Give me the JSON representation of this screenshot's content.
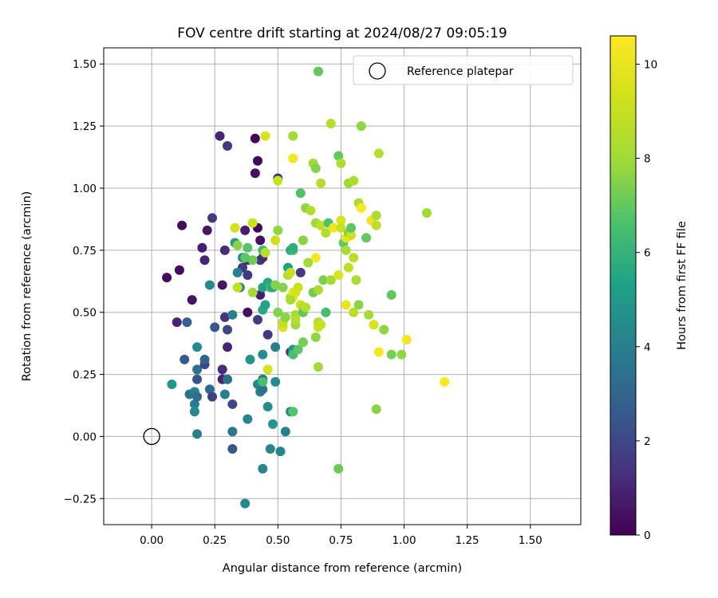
{
  "chart_data": {
    "type": "scatter",
    "title": "FOV centre drift starting at 2024/08/27 09:05:19",
    "xlabel": "Angular distance from reference (arcmin)",
    "ylabel": "Rotation from reference (arcmin)",
    "xlim": [
      -0.19,
      1.7
    ],
    "ylim": [
      -0.355,
      1.565
    ],
    "xticks": [
      "0.00",
      "0.25",
      "0.50",
      "0.75",
      "1.00",
      "1.25",
      "1.50"
    ],
    "yticks": [
      "−0.25",
      "0.00",
      "0.25",
      "0.50",
      "0.75",
      "1.00",
      "1.25",
      "1.50"
    ],
    "grid": true,
    "legend_position": "top-right",
    "reference": {
      "label": "Reference platepar",
      "x": 0.0,
      "y": 0.0
    },
    "colorbar": {
      "label": "Hours from first FF file",
      "colormap": "viridis",
      "range": [
        0,
        10.6
      ],
      "ticks": [
        "0",
        "2",
        "4",
        "6",
        "8",
        "10"
      ]
    },
    "points": [
      {
        "x": 0.06,
        "y": 0.64,
        "h": 0.3
      },
      {
        "x": 0.11,
        "y": 0.67,
        "h": 0.3
      },
      {
        "x": 0.12,
        "y": 0.85,
        "h": 0.3
      },
      {
        "x": 0.16,
        "y": 0.55,
        "h": 0.5
      },
      {
        "x": 0.1,
        "y": 0.46,
        "h": 1.0
      },
      {
        "x": 0.2,
        "y": 0.76,
        "h": 0.8
      },
      {
        "x": 0.21,
        "y": 0.71,
        "h": 1.0
      },
      {
        "x": 0.22,
        "y": 0.83,
        "h": 0.6
      },
      {
        "x": 0.24,
        "y": 0.88,
        "h": 1.6
      },
      {
        "x": 0.27,
        "y": 1.21,
        "h": 1.0
      },
      {
        "x": 0.3,
        "y": 1.17,
        "h": 1.5
      },
      {
        "x": 0.29,
        "y": 0.75,
        "h": 1.2
      },
      {
        "x": 0.37,
        "y": 0.83,
        "h": 0.8
      },
      {
        "x": 0.41,
        "y": 1.2,
        "h": 0.1
      },
      {
        "x": 0.42,
        "y": 1.11,
        "h": 0.2
      },
      {
        "x": 0.41,
        "y": 1.06,
        "h": 0.4
      },
      {
        "x": 0.42,
        "y": 0.84,
        "h": 0.2
      },
      {
        "x": 0.43,
        "y": 0.79,
        "h": 0.4
      },
      {
        "x": 0.38,
        "y": 0.71,
        "h": 1.3
      },
      {
        "x": 0.43,
        "y": 0.71,
        "h": 1.6
      },
      {
        "x": 0.44,
        "y": 0.72,
        "h": 1.2
      },
      {
        "x": 0.36,
        "y": 0.68,
        "h": 1.5
      },
      {
        "x": 0.38,
        "y": 0.65,
        "h": 1.5
      },
      {
        "x": 0.28,
        "y": 0.61,
        "h": 0.6
      },
      {
        "x": 0.23,
        "y": 0.61,
        "h": 4.4
      },
      {
        "x": 0.25,
        "y": 0.44,
        "h": 2.5
      },
      {
        "x": 0.29,
        "y": 0.48,
        "h": 1.4
      },
      {
        "x": 0.3,
        "y": 0.43,
        "h": 2.0
      },
      {
        "x": 0.3,
        "y": 0.36,
        "h": 1.0
      },
      {
        "x": 0.38,
        "y": 0.5,
        "h": 0.4
      },
      {
        "x": 0.42,
        "y": 0.47,
        "h": 1.7
      },
      {
        "x": 0.43,
        "y": 0.57,
        "h": 0.8
      },
      {
        "x": 0.46,
        "y": 0.41,
        "h": 1.5
      },
      {
        "x": 0.5,
        "y": 1.04,
        "h": 1.5
      },
      {
        "x": 0.59,
        "y": 0.66,
        "h": 1.5
      },
      {
        "x": 0.55,
        "y": 0.34,
        "h": 1.8
      },
      {
        "x": 0.14,
        "y": 0.46,
        "h": 2.8
      },
      {
        "x": 0.13,
        "y": 0.31,
        "h": 2.6
      },
      {
        "x": 0.18,
        "y": 0.27,
        "h": 3.5
      },
      {
        "x": 0.18,
        "y": 0.23,
        "h": 2.4
      },
      {
        "x": 0.21,
        "y": 0.29,
        "h": 2.0
      },
      {
        "x": 0.21,
        "y": 0.31,
        "h": 3.0
      },
      {
        "x": 0.23,
        "y": 0.19,
        "h": 3.1
      },
      {
        "x": 0.24,
        "y": 0.16,
        "h": 1.8
      },
      {
        "x": 0.28,
        "y": 0.27,
        "h": 1.2
      },
      {
        "x": 0.28,
        "y": 0.23,
        "h": 0.9
      },
      {
        "x": 0.3,
        "y": 0.23,
        "h": 3.3
      },
      {
        "x": 0.32,
        "y": 0.13,
        "h": 2.0
      },
      {
        "x": 0.29,
        "y": 0.17,
        "h": 4.0
      },
      {
        "x": 0.08,
        "y": 0.21,
        "h": 5.0
      },
      {
        "x": 0.15,
        "y": 0.17,
        "h": 3.5
      },
      {
        "x": 0.17,
        "y": 0.18,
        "h": 4.0
      },
      {
        "x": 0.17,
        "y": 0.13,
        "h": 3.9
      },
      {
        "x": 0.17,
        "y": 0.1,
        "h": 4.4
      },
      {
        "x": 0.18,
        "y": 0.16,
        "h": 3.3
      },
      {
        "x": 0.18,
        "y": 0.36,
        "h": 4.4
      },
      {
        "x": 0.18,
        "y": 0.01,
        "h": 4.0
      },
      {
        "x": 0.32,
        "y": 0.02,
        "h": 3.6
      },
      {
        "x": 0.32,
        "y": -0.05,
        "h": 2.5
      },
      {
        "x": 0.32,
        "y": 0.49,
        "h": 4.0
      },
      {
        "x": 0.34,
        "y": 0.66,
        "h": 4.0
      },
      {
        "x": 0.35,
        "y": 0.6,
        "h": 4.0
      },
      {
        "x": 0.33,
        "y": 0.78,
        "h": 5.0
      },
      {
        "x": 0.36,
        "y": 0.72,
        "h": 4.5
      },
      {
        "x": 0.38,
        "y": 0.07,
        "h": 4.2
      },
      {
        "x": 0.37,
        "y": -0.27,
        "h": 4.4
      },
      {
        "x": 0.39,
        "y": 0.31,
        "h": 4.8
      },
      {
        "x": 0.42,
        "y": 0.21,
        "h": 4.4
      },
      {
        "x": 0.43,
        "y": 0.18,
        "h": 3.9
      },
      {
        "x": 0.44,
        "y": 0.19,
        "h": 3.5
      },
      {
        "x": 0.44,
        "y": 0.23,
        "h": 3.3
      },
      {
        "x": 0.44,
        "y": 0.33,
        "h": 4.5
      },
      {
        "x": 0.44,
        "y": -0.13,
        "h": 4.2
      },
      {
        "x": 0.46,
        "y": 0.12,
        "h": 4.5
      },
      {
        "x": 0.47,
        "y": -0.05,
        "h": 4.2
      },
      {
        "x": 0.48,
        "y": 0.05,
        "h": 5.0
      },
      {
        "x": 0.49,
        "y": 0.22,
        "h": 4.4
      },
      {
        "x": 0.49,
        "y": 0.36,
        "h": 3.9
      },
      {
        "x": 0.51,
        "y": -0.06,
        "h": 4.2
      },
      {
        "x": 0.53,
        "y": 0.02,
        "h": 4.0
      },
      {
        "x": 0.55,
        "y": 0.1,
        "h": 4.3
      },
      {
        "x": 0.56,
        "y": 0.1,
        "h": 6.8
      },
      {
        "x": 0.44,
        "y": 0.22,
        "h": 6.5
      },
      {
        "x": 0.44,
        "y": 0.51,
        "h": 5.6
      },
      {
        "x": 0.45,
        "y": 0.53,
        "h": 5.4
      },
      {
        "x": 0.46,
        "y": 0.62,
        "h": 5.6
      },
      {
        "x": 0.44,
        "y": 0.6,
        "h": 5.4
      },
      {
        "x": 0.47,
        "y": 0.6,
        "h": 6.2
      },
      {
        "x": 0.48,
        "y": 0.6,
        "h": 5.5
      },
      {
        "x": 0.54,
        "y": 0.68,
        "h": 5.2
      },
      {
        "x": 0.55,
        "y": 0.75,
        "h": 5.5
      },
      {
        "x": 0.56,
        "y": 0.75,
        "h": 6.4
      },
      {
        "x": 0.56,
        "y": 0.76,
        "h": 5.8
      },
      {
        "x": 0.56,
        "y": 0.35,
        "h": 5.0
      },
      {
        "x": 0.56,
        "y": 0.33,
        "h": 6.5
      },
      {
        "x": 0.58,
        "y": 0.35,
        "h": 6.9
      },
      {
        "x": 0.4,
        "y": 0.71,
        "h": 7.2
      },
      {
        "x": 0.44,
        "y": 0.75,
        "h": 6.3
      },
      {
        "x": 0.38,
        "y": 0.76,
        "h": 6.8
      },
      {
        "x": 0.37,
        "y": 0.72,
        "h": 6.9
      },
      {
        "x": 0.34,
        "y": 0.77,
        "h": 7.6
      },
      {
        "x": 0.33,
        "y": 0.84,
        "h": 9.3
      },
      {
        "x": 0.34,
        "y": 0.6,
        "h": 8.9
      },
      {
        "x": 0.4,
        "y": 0.86,
        "h": 9.2
      },
      {
        "x": 0.45,
        "y": 0.74,
        "h": 8.6
      },
      {
        "x": 0.45,
        "y": 1.21,
        "h": 9.5
      },
      {
        "x": 0.5,
        "y": 1.03,
        "h": 9.0
      },
      {
        "x": 0.5,
        "y": 0.83,
        "h": 7.7
      },
      {
        "x": 0.49,
        "y": 0.79,
        "h": 9.2
      },
      {
        "x": 0.49,
        "y": 0.61,
        "h": 7.5
      },
      {
        "x": 0.5,
        "y": 0.5,
        "h": 7.5
      },
      {
        "x": 0.52,
        "y": 0.6,
        "h": 7.5
      },
      {
        "x": 0.52,
        "y": 0.44,
        "h": 9.5
      },
      {
        "x": 0.52,
        "y": 0.46,
        "h": 8.8
      },
      {
        "x": 0.53,
        "y": 0.48,
        "h": 7.6
      },
      {
        "x": 0.54,
        "y": 0.65,
        "h": 8.4
      },
      {
        "x": 0.55,
        "y": 0.56,
        "h": 8.6
      },
      {
        "x": 0.55,
        "y": 0.66,
        "h": 9.0
      },
      {
        "x": 0.56,
        "y": 0.58,
        "h": 9.9
      },
      {
        "x": 0.57,
        "y": 0.45,
        "h": 7.9
      },
      {
        "x": 0.57,
        "y": 0.49,
        "h": 8.2
      },
      {
        "x": 0.57,
        "y": 0.47,
        "h": 8.5
      },
      {
        "x": 0.58,
        "y": 0.6,
        "h": 9.0
      },
      {
        "x": 0.59,
        "y": 0.53,
        "h": 9.2
      },
      {
        "x": 0.6,
        "y": 0.52,
        "h": 8.5
      },
      {
        "x": 0.6,
        "y": 0.5,
        "h": 7.0
      },
      {
        "x": 0.6,
        "y": 0.38,
        "h": 7.3
      },
      {
        "x": 0.61,
        "y": 0.52,
        "h": 8.6
      },
      {
        "x": 0.61,
        "y": 0.92,
        "h": 7.7
      },
      {
        "x": 0.62,
        "y": 0.7,
        "h": 8.0
      },
      {
        "x": 0.63,
        "y": 0.91,
        "h": 8.4
      },
      {
        "x": 0.64,
        "y": 1.1,
        "h": 8.0
      },
      {
        "x": 0.65,
        "y": 1.08,
        "h": 7.5
      },
      {
        "x": 0.65,
        "y": 0.86,
        "h": 8.0
      },
      {
        "x": 0.65,
        "y": 0.72,
        "h": 10.3
      },
      {
        "x": 0.65,
        "y": 0.4,
        "h": 7.7
      },
      {
        "x": 0.66,
        "y": 0.28,
        "h": 8.0
      },
      {
        "x": 0.66,
        "y": 0.44,
        "h": 9.3
      },
      {
        "x": 0.66,
        "y": 0.46,
        "h": 8.5
      },
      {
        "x": 0.67,
        "y": 1.02,
        "h": 8.5
      },
      {
        "x": 0.67,
        "y": 0.85,
        "h": 8.8
      },
      {
        "x": 0.68,
        "y": 0.63,
        "h": 7.4
      },
      {
        "x": 0.69,
        "y": 0.5,
        "h": 6.4
      },
      {
        "x": 0.69,
        "y": 0.82,
        "h": 8.5
      },
      {
        "x": 0.7,
        "y": 0.86,
        "h": 6.7
      },
      {
        "x": 0.71,
        "y": 1.26,
        "h": 8.5
      },
      {
        "x": 0.71,
        "y": 0.63,
        "h": 8.0
      },
      {
        "x": 0.72,
        "y": 0.84,
        "h": 10.2
      },
      {
        "x": 0.74,
        "y": 0.65,
        "h": 9.6
      },
      {
        "x": 0.74,
        "y": 1.13,
        "h": 7.0
      },
      {
        "x": 0.75,
        "y": 1.1,
        "h": 8.3
      },
      {
        "x": 0.75,
        "y": 0.87,
        "h": 9.5
      },
      {
        "x": 0.75,
        "y": 0.84,
        "h": 9.0
      },
      {
        "x": 0.76,
        "y": 0.78,
        "h": 7.0
      },
      {
        "x": 0.77,
        "y": 0.8,
        "h": 10.0
      },
      {
        "x": 0.77,
        "y": 0.53,
        "h": 10.0
      },
      {
        "x": 0.77,
        "y": 0.75,
        "h": 8.2
      },
      {
        "x": 0.78,
        "y": 0.68,
        "h": 8.8
      },
      {
        "x": 0.78,
        "y": 1.02,
        "h": 7.9
      },
      {
        "x": 0.78,
        "y": 0.82,
        "h": 7.5
      },
      {
        "x": 0.79,
        "y": 0.81,
        "h": 9.2
      },
      {
        "x": 0.79,
        "y": 0.84,
        "h": 6.9
      },
      {
        "x": 0.8,
        "y": 1.03,
        "h": 8.3
      },
      {
        "x": 0.8,
        "y": 0.72,
        "h": 8.6
      },
      {
        "x": 0.8,
        "y": 0.5,
        "h": 8.7
      },
      {
        "x": 0.81,
        "y": 0.63,
        "h": 8.2
      },
      {
        "x": 0.82,
        "y": 0.53,
        "h": 7.6
      },
      {
        "x": 0.82,
        "y": 0.94,
        "h": 8.2
      },
      {
        "x": 0.83,
        "y": 0.92,
        "h": 10.5
      },
      {
        "x": 0.83,
        "y": 1.25,
        "h": 7.7
      },
      {
        "x": 0.85,
        "y": 0.8,
        "h": 7.0
      },
      {
        "x": 0.86,
        "y": 0.49,
        "h": 8.0
      },
      {
        "x": 0.87,
        "y": 0.87,
        "h": 10.2
      },
      {
        "x": 0.88,
        "y": 0.45,
        "h": 9.5
      },
      {
        "x": 0.89,
        "y": 0.89,
        "h": 8.3
      },
      {
        "x": 0.89,
        "y": 0.85,
        "h": 8.7
      },
      {
        "x": 0.89,
        "y": 0.11,
        "h": 7.6
      },
      {
        "x": 0.9,
        "y": 0.34,
        "h": 10.3
      },
      {
        "x": 0.9,
        "y": 1.14,
        "h": 8.5
      },
      {
        "x": 0.92,
        "y": 0.43,
        "h": 7.7
      },
      {
        "x": 0.95,
        "y": 0.57,
        "h": 7.0
      },
      {
        "x": 0.95,
        "y": 0.33,
        "h": 7.3
      },
      {
        "x": 0.99,
        "y": 0.33,
        "h": 7.7
      },
      {
        "x": 1.01,
        "y": 0.39,
        "h": 10.3
      },
      {
        "x": 1.09,
        "y": 0.9,
        "h": 8.0
      },
      {
        "x": 1.16,
        "y": 0.22,
        "h": 10.5
      },
      {
        "x": 0.66,
        "y": 1.47,
        "h": 7.0
      },
      {
        "x": 0.56,
        "y": 1.21,
        "h": 8.0
      },
      {
        "x": 0.56,
        "y": 1.12,
        "h": 10.3
      },
      {
        "x": 0.59,
        "y": 0.98,
        "h": 6.7
      },
      {
        "x": 0.6,
        "y": 0.79,
        "h": 7.6
      },
      {
        "x": 0.64,
        "y": 0.58,
        "h": 7.2
      },
      {
        "x": 0.66,
        "y": 0.59,
        "h": 8.2
      },
      {
        "x": 0.67,
        "y": 0.45,
        "h": 9.0
      },
      {
        "x": 0.74,
        "y": -0.13,
        "h": 7.1
      },
      {
        "x": 0.46,
        "y": 0.27,
        "h": 9.4
      },
      {
        "x": 0.56,
        "y": 0.56,
        "h": 10.3
      },
      {
        "x": 0.57,
        "y": 0.58,
        "h": 9.4
      },
      {
        "x": 0.4,
        "y": 0.58,
        "h": 8.0
      },
      {
        "x": 0.55,
        "y": 0.55,
        "h": 8.2
      }
    ]
  }
}
